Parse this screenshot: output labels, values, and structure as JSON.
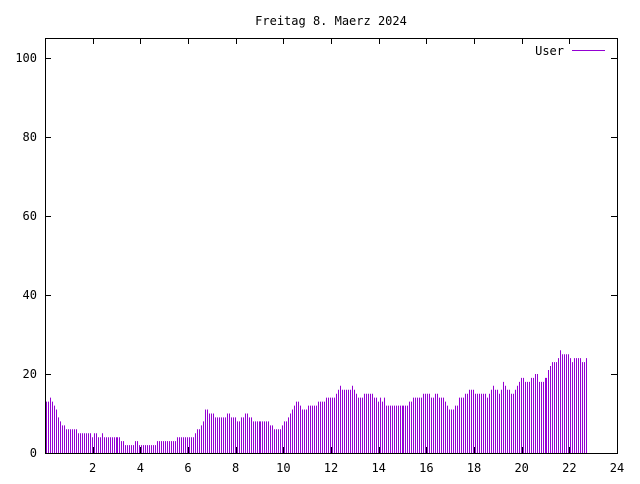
{
  "chart_data": {
    "type": "bar",
    "title": "Freitag 8. Maerz 2024",
    "xlabel": "",
    "ylabel": "",
    "xlim": [
      0,
      24
    ],
    "ylim": [
      0,
      105
    ],
    "x_ticks": [
      "2",
      "4",
      "6",
      "8",
      "10",
      "12",
      "14",
      "16",
      "18",
      "20",
      "22",
      "24"
    ],
    "y_ticks": [
      "0",
      "20",
      "40",
      "60",
      "80",
      "100"
    ],
    "grid": false,
    "legend": {
      "placement": "top-right"
    },
    "series": [
      {
        "name": "User",
        "color": "#9400d3",
        "bin_minutes": 5,
        "values": [
          13,
          13,
          14,
          13,
          12,
          11,
          9,
          8,
          7,
          7,
          6,
          6,
          6,
          6,
          6,
          6,
          5,
          5,
          5,
          5,
          5,
          5,
          5,
          4,
          5,
          5,
          4,
          4,
          5,
          4,
          4,
          4,
          4,
          4,
          4,
          4,
          4,
          4,
          3,
          3,
          2,
          2,
          2,
          2,
          2,
          3,
          3,
          2,
          2,
          2,
          2,
          2,
          2,
          2,
          2,
          2,
          3,
          3,
          3,
          3,
          3,
          3,
          3,
          3,
          3,
          3,
          4,
          4,
          4,
          4,
          4,
          4,
          4,
          4,
          4,
          5,
          6,
          6,
          7,
          8,
          11,
          11,
          10,
          10,
          10,
          9,
          9,
          9,
          9,
          9,
          9,
          10,
          10,
          9,
          9,
          9,
          8,
          8,
          9,
          9,
          10,
          10,
          9,
          9,
          8,
          8,
          8,
          8,
          8,
          8,
          8,
          8,
          8,
          7,
          7,
          6,
          6,
          6,
          6,
          7,
          8,
          8,
          9,
          10,
          11,
          12,
          13,
          13,
          12,
          11,
          11,
          11,
          12,
          12,
          12,
          12,
          12,
          13,
          13,
          13,
          13,
          14,
          14,
          14,
          14,
          14,
          15,
          16,
          17,
          16,
          16,
          16,
          16,
          16,
          17,
          16,
          15,
          14,
          14,
          14,
          15,
          15,
          15,
          15,
          15,
          14,
          14,
          13,
          14,
          13,
          14,
          12,
          12,
          12,
          12,
          12,
          12,
          12,
          12,
          12,
          12,
          12,
          12,
          13,
          13,
          14,
          14,
          14,
          14,
          14,
          15,
          15,
          15,
          15,
          14,
          14,
          15,
          15,
          14,
          14,
          14,
          13,
          12,
          11,
          11,
          11,
          12,
          12,
          14,
          14,
          14,
          15,
          15,
          16,
          16,
          16,
          15,
          15,
          15,
          15,
          15,
          15,
          14,
          15,
          16,
          17,
          16,
          16,
          15,
          16,
          18,
          17,
          16,
          16,
          15,
          15,
          16,
          17,
          18,
          19,
          19,
          18,
          18,
          18,
          19,
          19,
          20,
          20,
          18,
          18,
          18,
          19,
          19,
          21,
          22,
          23,
          23,
          23,
          24,
          26,
          25,
          25,
          25,
          25,
          24,
          23,
          24,
          24,
          24,
          24,
          23,
          23,
          24
        ]
      }
    ]
  }
}
